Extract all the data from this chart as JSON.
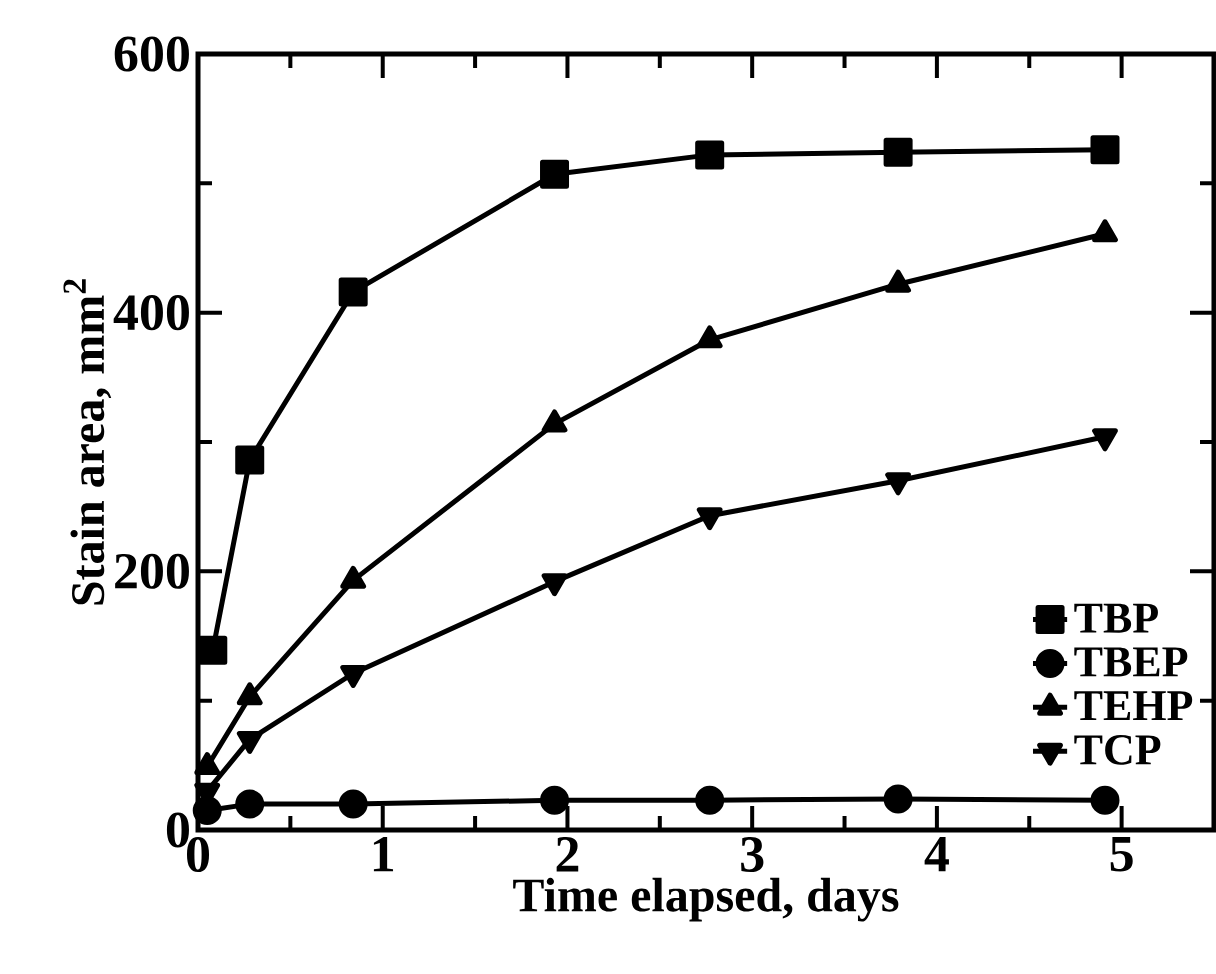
{
  "chart_data": {
    "type": "line",
    "xlabel": "Time elapsed, days",
    "ylabel": "Stain area, mm$^{2}$",
    "xlim": [
      0,
      5.5
    ],
    "ylim": [
      0,
      600
    ],
    "xticks": [
      0,
      1,
      2,
      3,
      4,
      5
    ],
    "yticks": [
      0,
      200,
      400,
      600
    ],
    "legend": "bottom right",
    "grid": false,
    "line_style": "solid",
    "series": [
      {
        "name": "TBP",
        "color": "#000000",
        "marker": "square",
        "x": [
          0.08,
          0.28,
          0.84,
          1.93,
          2.77,
          3.79,
          4.91
        ],
        "values": [
          139,
          286,
          416,
          507,
          522,
          524,
          526
        ]
      },
      {
        "name": "TBEP",
        "color": "#000000",
        "marker": "circle",
        "x": [
          0.05,
          0.28,
          0.84,
          1.93,
          2.77,
          3.79,
          4.91
        ],
        "values": [
          15,
          20,
          20,
          23,
          23,
          24,
          23
        ]
      },
      {
        "name": "TEHP",
        "color": "#000000",
        "marker": "triangle",
        "x": [
          0.05,
          0.28,
          0.84,
          1.93,
          2.77,
          3.79,
          4.91
        ],
        "values": [
          49,
          103,
          193,
          314,
          379,
          422,
          461
        ]
      },
      {
        "name": "TCP",
        "color": "#000000",
        "marker": "triangle_down",
        "x": [
          0.05,
          0.28,
          0.84,
          1.93,
          2.77,
          3.79,
          4.91
        ],
        "values": [
          30,
          70,
          121,
          192,
          243,
          270,
          304
        ]
      }
    ]
  }
}
